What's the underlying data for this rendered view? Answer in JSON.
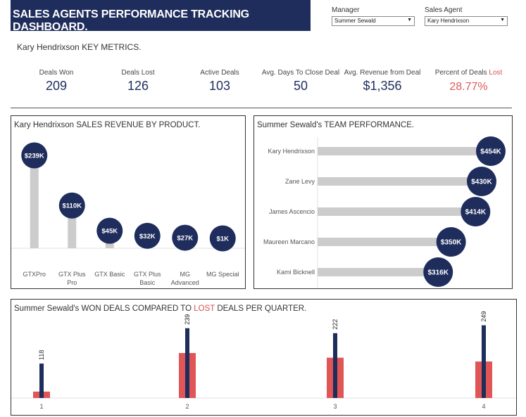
{
  "header": {
    "title": "SALES AGENTS PERFORMANCE TRACKING DASHBOARD."
  },
  "filters": {
    "manager": {
      "label": "Manager",
      "value": "Summer Sewald",
      "arrow": "▼"
    },
    "agent": {
      "label": "Sales Agent",
      "value": "Kary Hendrixson",
      "arrow": "▼"
    }
  },
  "key_metrics": {
    "agent_name": "Kary Hendrixson",
    "title_suffix": "KEY METRICS.",
    "items": [
      {
        "label": "Deals Won",
        "value": "209"
      },
      {
        "label": "Deals Lost",
        "value": "126"
      },
      {
        "label": "Active Deals",
        "value": "103"
      },
      {
        "label": "Avg. Days To Close Deal",
        "value": "50"
      },
      {
        "label": "Avg. Revenue from Deal",
        "value": "$1,356"
      }
    ],
    "percent_lost": {
      "label_prefix": "Percent of Deals",
      "label_lost": "Lost",
      "value": "28.77%"
    }
  },
  "product_panel": {
    "agent_name": "Kary Hendrixson",
    "title_suffix": "SALES REVENUE BY PRODUCT."
  },
  "team_panel": {
    "manager_name": "Summer Sewald's",
    "title_suffix": "TEAM PERFORMANCE."
  },
  "quarter_panel": {
    "manager_name": "Summer Sewald's",
    "title_won": "WON DEALS COMPARED TO",
    "title_lost": "LOST",
    "title_suffix": "DEALS PER QUARTER."
  },
  "colors": {
    "navy": "#1e2d5c",
    "bar_gray": "#cccccc",
    "lost_red": "#e05555"
  },
  "chart_data": [
    {
      "type": "bar",
      "categories": [
        "GTXPro",
        "GTX Plus Pro",
        "GTX Basic",
        "GTX Plus Basic",
        "MG Advanced",
        "MG Special"
      ],
      "values": [
        239,
        110,
        45,
        32,
        27,
        1
      ],
      "labels": [
        "$239K",
        "$110K",
        "$45K",
        "$32K",
        "$27K",
        "$1K"
      ],
      "ylim": [
        0,
        250
      ]
    },
    {
      "type": "bar",
      "orientation": "horizontal",
      "categories": [
        "Kary Hendrixson",
        "Zane Levy",
        "James Ascencio",
        "Maureen Marcano",
        "Kami Bicknell"
      ],
      "values": [
        454,
        430,
        414,
        350,
        316
      ],
      "labels": [
        "$454K",
        "$430K",
        "$414K",
        "$350K",
        "$316K"
      ],
      "xlim": [
        0,
        460
      ]
    },
    {
      "type": "bar",
      "categories": [
        "1",
        "2",
        "3",
        "4"
      ],
      "series": [
        {
          "name": "WON",
          "values": [
            118,
            239,
            222,
            249
          ]
        },
        {
          "name": "LOST",
          "values": [
            22,
            154,
            138,
            125
          ]
        }
      ],
      "labels": [
        "118",
        "239",
        "222",
        "249"
      ],
      "ylim": [
        0,
        260
      ]
    }
  ]
}
